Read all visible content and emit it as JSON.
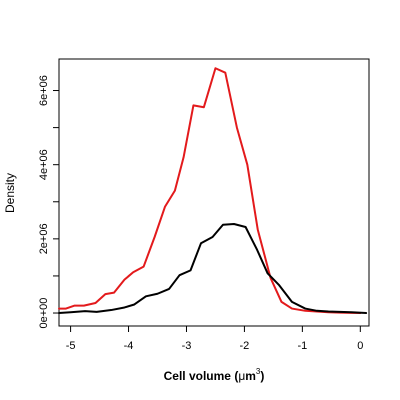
{
  "chart_data": {
    "type": "line",
    "title": "",
    "xlabel": "Cell volume",
    "xlabel_unit_prefix": "(",
    "xlabel_unit_mu": "μ",
    "xlabel_unit_m": "m",
    "xlabel_unit_exp": "3",
    "xlabel_unit_suffix": ")",
    "ylabel": "Density",
    "xlim": [
      -5.2,
      0.15
    ],
    "ylim": [
      -350000,
      6850000
    ],
    "x_ticks": [
      {
        "value": -5,
        "label": "-5"
      },
      {
        "value": -4,
        "label": "-4"
      },
      {
        "value": -3,
        "label": "-3"
      },
      {
        "value": -2,
        "label": "-2"
      },
      {
        "value": -1,
        "label": "-1"
      },
      {
        "value": 0,
        "label": "0"
      }
    ],
    "y_ticks": [
      {
        "value": 0,
        "label": "0e+00"
      },
      {
        "value": 2000000,
        "label": "2e+06"
      },
      {
        "value": 4000000,
        "label": "4e+06"
      },
      {
        "value": 6000000,
        "label": "6e+06"
      }
    ],
    "y_minor_ticks": [
      1000000,
      3000000,
      5000000
    ],
    "grid": false,
    "series": [
      {
        "color": "#e31a1c",
        "x": [
          -5.2,
          -5.08,
          -4.93,
          -4.77,
          -4.57,
          -4.4,
          -4.25,
          -4.07,
          -3.92,
          -3.74,
          -3.55,
          -3.37,
          -3.2,
          -3.05,
          -2.88,
          -2.7,
          -2.5,
          -2.33,
          -2.13,
          -1.95,
          -1.77,
          -1.55,
          -1.36,
          -1.18,
          -0.95,
          -0.75,
          -0.55,
          -0.35,
          -0.15,
          0.0
        ],
        "y": [
          120000,
          120000,
          200000,
          200000,
          270000,
          510000,
          550000,
          900000,
          1100000,
          1250000,
          2050000,
          2870000,
          3300000,
          4200000,
          5600000,
          5550000,
          6600000,
          6480000,
          5000000,
          4000000,
          2250000,
          950000,
          300000,
          120000,
          60000,
          40000,
          20000,
          10000,
          5000,
          0
        ]
      },
      {
        "color": "#000000",
        "x": [
          -5.2,
          -5.0,
          -4.75,
          -4.55,
          -4.3,
          -4.07,
          -3.9,
          -3.7,
          -3.5,
          -3.3,
          -3.12,
          -2.93,
          -2.75,
          -2.55,
          -2.37,
          -2.18,
          -1.98,
          -1.78,
          -1.6,
          -1.4,
          -1.18,
          -0.95,
          -0.75,
          -0.55,
          -0.35,
          -0.15,
          0.1
        ],
        "y": [
          0,
          20000,
          50000,
          30000,
          80000,
          150000,
          230000,
          450000,
          520000,
          650000,
          1020000,
          1150000,
          1880000,
          2050000,
          2380000,
          2400000,
          2320000,
          1700000,
          1070000,
          750000,
          300000,
          120000,
          60000,
          40000,
          30000,
          20000,
          0
        ]
      }
    ]
  }
}
